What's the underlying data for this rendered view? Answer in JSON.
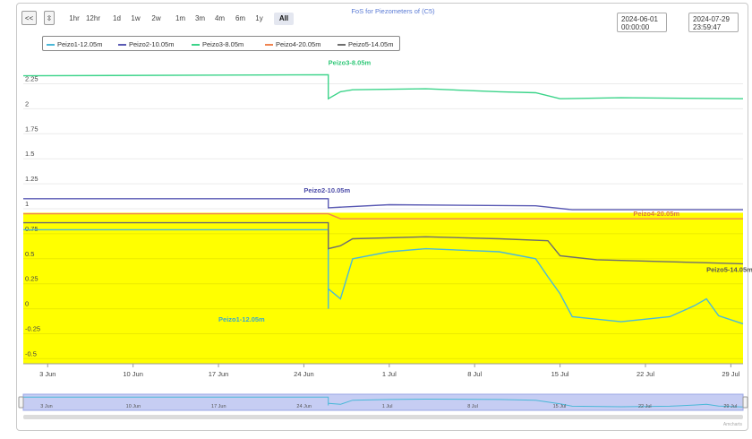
{
  "toolbar": {
    "collapse_label": "<<",
    "export_label": "⇳",
    "zoom_buttons": [
      "1hr",
      "12hr",
      "1d",
      "1w",
      "2w",
      "1m",
      "3m",
      "4m",
      "6m",
      "1y",
      "All"
    ],
    "selected_zoom": "All"
  },
  "date_range": {
    "start_date": "2024-06-01",
    "start_time": "00:00:00",
    "separator": "→",
    "end_date": "2024-07-29",
    "end_time": "23:59:47"
  },
  "navigator_credit": "Amcharts",
  "chart_data": {
    "type": "line",
    "title": "FoS for Piezometers of (C5)",
    "xlabel": "",
    "ylabel": "",
    "x_range": [
      "2024-06-01",
      "2024-07-30"
    ],
    "ylim": [
      -0.55,
      2.55
    ],
    "x_tick_labels": [
      "3 Jun",
      "10 Jun",
      "17 Jun",
      "24 Jun",
      "1 Jul",
      "8 Jul",
      "15 Jul",
      "22 Jul",
      "29 Jul"
    ],
    "y_tick_labels": [
      "2.25",
      "2",
      "1.75",
      "1.5",
      "1.25",
      "1",
      "0.75",
      "0.5",
      "0.25",
      "0",
      "-0.25",
      "-0.5"
    ],
    "grid": true,
    "legend_position": "top-left",
    "threshold_band": {
      "from": -0.55,
      "to": 0.96,
      "color": "#ffff00"
    },
    "series": [
      {
        "name": "Peizo1-12.05m",
        "color": "#4ab8d8",
        "x": [
          "2024-06-01",
          "2024-06-10",
          "2024-06-26",
          "2024-06-26",
          "2024-06-26",
          "2024-06-27",
          "2024-06-28",
          "2024-07-01",
          "2024-07-04",
          "2024-07-10",
          "2024-07-13",
          "2024-07-14",
          "2024-07-15",
          "2024-07-16",
          "2024-07-20",
          "2024-07-24",
          "2024-07-26",
          "2024-07-27",
          "2024-07-28",
          "2024-07-30"
        ],
        "y": [
          0.79,
          0.79,
          0.79,
          0.0,
          0.2,
          0.1,
          0.5,
          0.57,
          0.6,
          0.57,
          0.5,
          0.32,
          0.15,
          -0.08,
          -0.13,
          -0.08,
          0.03,
          0.1,
          -0.07,
          -0.15
        ]
      },
      {
        "name": "Peizo2-10.05m",
        "color": "#5a5ab4",
        "x": [
          "2024-06-01",
          "2024-06-26",
          "2024-06-26",
          "2024-07-01",
          "2024-07-13",
          "2024-07-16",
          "2024-07-30"
        ],
        "y": [
          1.1,
          1.1,
          1.01,
          1.04,
          1.03,
          0.99,
          0.99
        ]
      },
      {
        "name": "Peizo3-8.05m",
        "color": "#3cd48a",
        "x": [
          "2024-06-01",
          "2024-06-26",
          "2024-06-26",
          "2024-06-27",
          "2024-06-28",
          "2024-07-04",
          "2024-07-10",
          "2024-07-13",
          "2024-07-15",
          "2024-07-20",
          "2024-07-30"
        ],
        "y": [
          2.33,
          2.34,
          2.1,
          2.17,
          2.19,
          2.2,
          2.17,
          2.16,
          2.1,
          2.11,
          2.1
        ]
      },
      {
        "name": "Peizo4-20.05m",
        "color": "#f08450",
        "x": [
          "2024-06-01",
          "2024-06-26",
          "2024-06-27",
          "2024-07-30"
        ],
        "y": [
          0.95,
          0.95,
          0.9,
          0.9
        ]
      },
      {
        "name": "Peizo5-14.05m",
        "color": "#6e6e6e",
        "x": [
          "2024-06-01",
          "2024-06-26",
          "2024-06-26",
          "2024-06-27",
          "2024-06-28",
          "2024-07-04",
          "2024-07-10",
          "2024-07-14",
          "2024-07-15",
          "2024-07-18",
          "2024-07-24",
          "2024-07-30"
        ],
        "y": [
          0.86,
          0.86,
          0.6,
          0.63,
          0.7,
          0.72,
          0.7,
          0.68,
          0.53,
          0.49,
          0.47,
          0.45
        ]
      }
    ],
    "annotations": [
      "Peizo3-8.05m",
      "Peizo2-10.05m",
      "Peizo4-20.05m",
      "Peizo5-14.05m",
      "Peizo1-12.05m"
    ]
  }
}
